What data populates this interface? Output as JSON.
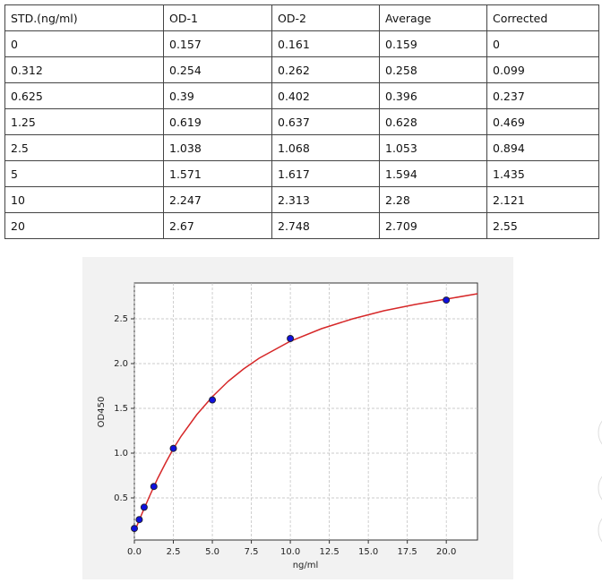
{
  "table": {
    "header": [
      "STD.(ng/ml)",
      "OD-1",
      "OD-2",
      "Average",
      "Corrected"
    ],
    "rows": [
      [
        "0",
        "0.157",
        "0.161",
        "0.159",
        "0"
      ],
      [
        "0.312",
        "0.254",
        "0.262",
        "0.258",
        "0.099"
      ],
      [
        "0.625",
        "0.39",
        "0.402",
        "0.396",
        "0.237"
      ],
      [
        "1.25",
        "0.619",
        "0.637",
        "0.628",
        "0.469"
      ],
      [
        "2.5",
        "1.038",
        "1.068",
        "1.053",
        "0.894"
      ],
      [
        "5",
        "1.571",
        "1.617",
        "1.594",
        "1.435"
      ],
      [
        "10",
        "2.247",
        "2.313",
        "2.28",
        "2.121"
      ],
      [
        "20",
        "2.67",
        "2.748",
        "2.709",
        "2.55"
      ]
    ]
  },
  "chart_data": {
    "type": "scatter",
    "xlabel": "ng/ml",
    "ylabel": "OD450",
    "xlim": [
      0,
      22
    ],
    "ylim": [
      0.03,
      2.9
    ],
    "grid": true,
    "xticks": [
      {
        "value": 0,
        "label": "0.0"
      },
      2.5,
      {
        "value": 5,
        "label": "5.0"
      },
      7.5,
      {
        "value": 10,
        "label": "10.0"
      },
      12.5,
      {
        "value": 15,
        "label": "15.0"
      },
      17.5,
      {
        "value": 20,
        "label": "20.0"
      }
    ],
    "yticks": [
      0.5,
      {
        "value": 1,
        "label": "1.0"
      },
      1.5,
      {
        "value": 2,
        "label": "2.0"
      },
      2.5
    ],
    "series": [
      {
        "type": "line",
        "color": "#d62728",
        "x": [
          0,
          0.5,
          1,
          1.5,
          2,
          2.5,
          3,
          4,
          5,
          6,
          7,
          8,
          10,
          12,
          14,
          16,
          18,
          20,
          22
        ],
        "values": [
          0.12,
          0.33,
          0.53,
          0.72,
          0.89,
          1.05,
          1.19,
          1.43,
          1.63,
          1.8,
          1.94,
          2.06,
          2.25,
          2.39,
          2.5,
          2.59,
          2.66,
          2.72,
          2.78
        ]
      },
      {
        "type": "scatter",
        "color": "#1010e0",
        "x": [
          0,
          0.312,
          0.625,
          1.25,
          2.5,
          5,
          10,
          20
        ],
        "values": [
          0.159,
          0.258,
          0.396,
          0.628,
          1.053,
          1.594,
          2.28,
          2.709
        ]
      }
    ]
  }
}
